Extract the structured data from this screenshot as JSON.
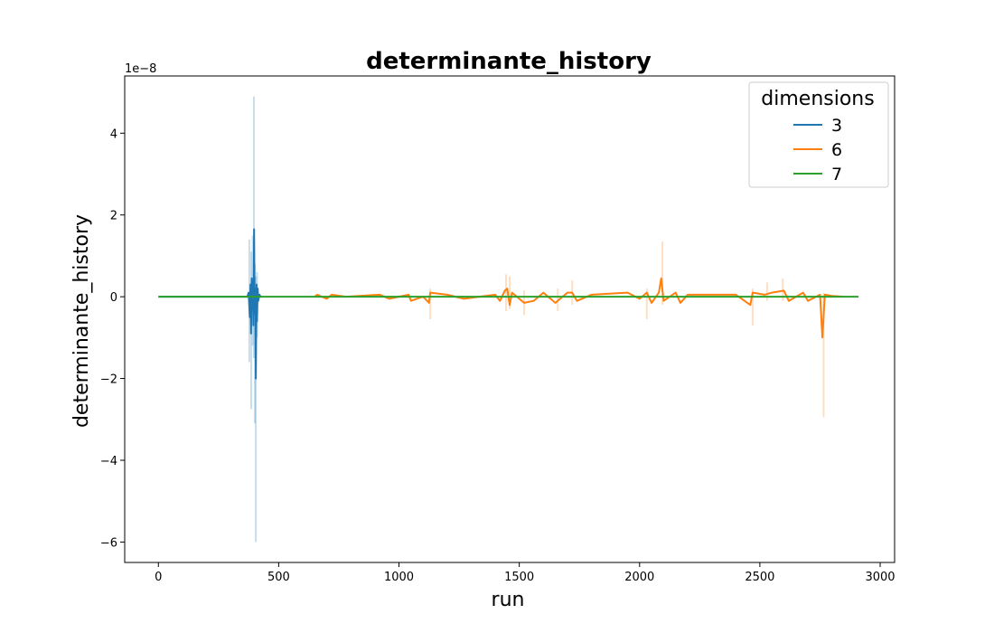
{
  "chart_data": {
    "type": "line",
    "title": "determinante_history",
    "xlabel": "run",
    "ylabel": "determinante_history",
    "y_offset_label": "1e−8",
    "xlim": [
      -140,
      3060
    ],
    "ylim": [
      -6.5,
      5.4
    ],
    "x_ticks": [
      0,
      500,
      1000,
      1500,
      2000,
      2500,
      3000
    ],
    "x_tick_labels": [
      "0",
      "500",
      "1000",
      "1500",
      "2000",
      "2500",
      "3000"
    ],
    "y_ticks": [
      -6,
      -4,
      -2,
      0,
      2,
      4
    ],
    "y_tick_labels": [
      "−6",
      "−4",
      "−2",
      "0",
      "2",
      "4"
    ],
    "grid": false,
    "legend": {
      "title": "dimensions",
      "placement": "top-right"
    },
    "series": [
      {
        "name": "3",
        "color": "#1f77b4",
        "x": [
          0,
          370,
          375,
          380,
          383,
          385,
          388,
          390,
          393,
          395,
          398,
          400,
          403,
          405,
          408,
          410,
          413,
          415,
          420,
          425,
          430
        ],
        "y": [
          0,
          0,
          0.1,
          -0.5,
          0.3,
          -0.9,
          0.45,
          -0.3,
          0.4,
          -0.7,
          1.65,
          -0.4,
          0.2,
          -2.0,
          0.3,
          -0.6,
          0.2,
          -0.1,
          0.05,
          0,
          0
        ],
        "band": [
          {
            "x": 378,
            "lo": -1.6,
            "hi": 1.4
          },
          {
            "x": 386,
            "lo": -2.75,
            "hi": 1.1
          },
          {
            "x": 392,
            "lo": -1.2,
            "hi": 1.5
          },
          {
            "x": 397,
            "lo": -1.5,
            "hi": 4.9
          },
          {
            "x": 401,
            "lo": -3.1,
            "hi": 0.8
          },
          {
            "x": 405,
            "lo": -6.0,
            "hi": 0.5
          },
          {
            "x": 410,
            "lo": -1.0,
            "hi": 0.6
          }
        ]
      },
      {
        "name": "6",
        "color": "#ff7f0e",
        "x": [
          650,
          660,
          700,
          720,
          780,
          920,
          960,
          1040,
          1050,
          1100,
          1125,
          1130,
          1200,
          1270,
          1400,
          1420,
          1440,
          1450,
          1460,
          1470,
          1520,
          1560,
          1600,
          1650,
          1700,
          1720,
          1740,
          1800,
          1950,
          2000,
          2030,
          2050,
          2080,
          2090,
          2100,
          2150,
          2170,
          2200,
          2300,
          2400,
          2460,
          2470,
          2520,
          2550,
          2600,
          2620,
          2680,
          2700,
          2750,
          2760,
          2770,
          2800,
          2850
        ],
        "y": [
          0,
          0.05,
          -0.05,
          0.05,
          0,
          0.05,
          -0.05,
          0.05,
          -0.1,
          0,
          -0.15,
          0.1,
          0.05,
          -0.05,
          0.05,
          -0.1,
          0.15,
          0.2,
          -0.2,
          0.1,
          -0.15,
          -0.1,
          0.1,
          -0.15,
          0.1,
          0.1,
          -0.1,
          0.05,
          0.1,
          -0.05,
          0.1,
          -0.15,
          0.1,
          0.45,
          -0.1,
          0.1,
          -0.15,
          0.05,
          0.05,
          0.05,
          -0.2,
          0.1,
          0.05,
          0.1,
          0.15,
          -0.1,
          0.1,
          -0.1,
          0.05,
          -1.0,
          0.05,
          0.02,
          0
        ],
        "band": [
          {
            "x": 1130,
            "lo": -0.55,
            "hi": 0.2
          },
          {
            "x": 1445,
            "lo": -0.35,
            "hi": 0.55
          },
          {
            "x": 1460,
            "lo": -0.3,
            "hi": 0.5
          },
          {
            "x": 1520,
            "lo": -0.45,
            "hi": 0.15
          },
          {
            "x": 1660,
            "lo": -0.35,
            "hi": 0.2
          },
          {
            "x": 1720,
            "lo": -0.2,
            "hi": 0.4
          },
          {
            "x": 2030,
            "lo": -0.55,
            "hi": 0.2
          },
          {
            "x": 2095,
            "lo": -0.2,
            "hi": 1.35
          },
          {
            "x": 2470,
            "lo": -0.7,
            "hi": 0.2
          },
          {
            "x": 2530,
            "lo": -0.1,
            "hi": 0.35
          },
          {
            "x": 2595,
            "lo": -0.1,
            "hi": 0.45
          },
          {
            "x": 2765,
            "lo": -2.95,
            "hi": 0.1
          }
        ]
      },
      {
        "name": "7",
        "color": "#2ca02c",
        "x": [
          0,
          500,
          1000,
          1500,
          2000,
          2500,
          2910
        ],
        "y": [
          0,
          0,
          0,
          0,
          0,
          0,
          0
        ],
        "band": []
      }
    ]
  }
}
